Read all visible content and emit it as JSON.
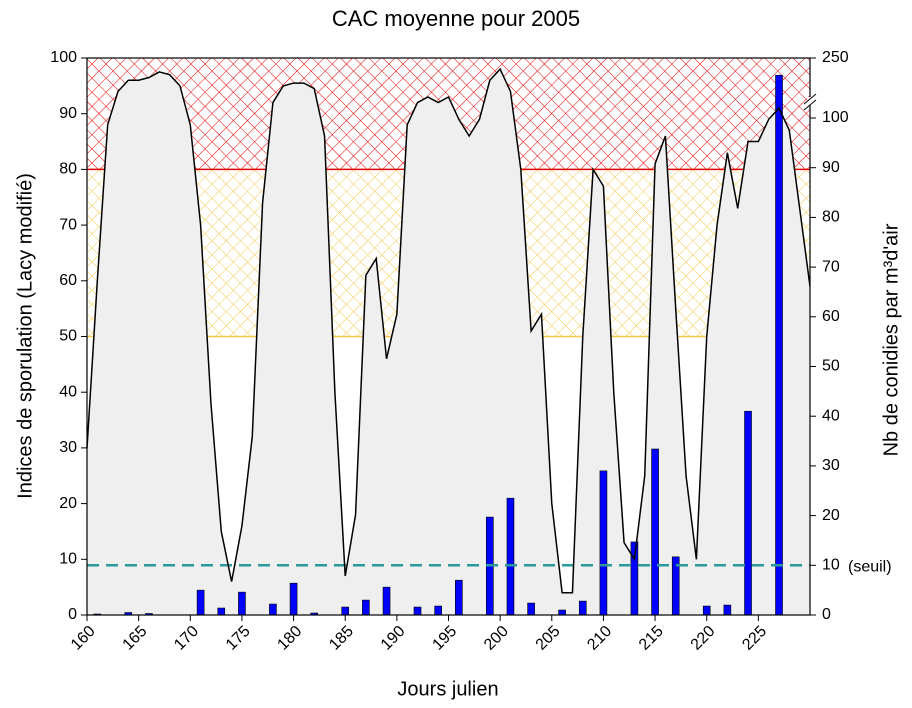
{
  "chart_data": {
    "type": "bar_area",
    "title": "CAC moyenne pour 2005",
    "xlabel": "Jours julien",
    "ylabel": "Indices de sporulation (Lacy modifié)",
    "y2label": "Nb de conidies par m³d'air",
    "xlim": [
      160,
      230
    ],
    "xticks": [
      160,
      165,
      170,
      175,
      180,
      185,
      190,
      195,
      200,
      205,
      210,
      215,
      220,
      225
    ],
    "ylim": [
      0,
      100
    ],
    "yticks": [
      0,
      10,
      20,
      30,
      40,
      50,
      60,
      70,
      80,
      90,
      100
    ],
    "y2lim": [
      0,
      250
    ],
    "y2break": 100,
    "y2ticks": [
      0,
      10,
      20,
      30,
      40,
      50,
      60,
      70,
      80,
      90,
      100,
      250
    ],
    "zones": [
      {
        "from": 50,
        "to": 80,
        "color": "#f2c84b"
      },
      {
        "from": 80,
        "to": 100,
        "color": "#e00000"
      }
    ],
    "threshold": {
      "value": 10,
      "label": "(seuil)",
      "axis": "y2",
      "color": "#2a9a9a"
    },
    "series": [
      {
        "type": "area",
        "color": "#000000",
        "fill": "#efefef",
        "x": [
          160,
          161,
          162,
          163,
          164,
          165,
          166,
          167,
          168,
          169,
          170,
          171,
          172,
          173,
          174,
          175,
          176,
          177,
          178,
          179,
          180,
          181,
          182,
          183,
          184,
          185,
          186,
          187,
          188,
          189,
          190,
          191,
          192,
          193,
          194,
          195,
          196,
          197,
          198,
          199,
          200,
          201,
          202,
          203,
          204,
          205,
          206,
          207,
          208,
          209,
          210,
          211,
          212,
          213,
          214,
          215,
          216,
          217,
          218,
          219,
          220,
          221,
          222,
          223,
          224,
          225,
          226,
          227,
          228,
          230
        ],
        "values": [
          30,
          60,
          88,
          94,
          96,
          96,
          96.5,
          97.5,
          97,
          95,
          88,
          70,
          38,
          15,
          6,
          16,
          32,
          74,
          92,
          95,
          95.5,
          95.5,
          94.5,
          86,
          40,
          7,
          18,
          61,
          64,
          46,
          54,
          88,
          92,
          93,
          92,
          93,
          89,
          86,
          89,
          96,
          98,
          94,
          80,
          51,
          54,
          20,
          4,
          4,
          50,
          80,
          77,
          40,
          13,
          10,
          25,
          81,
          86,
          55,
          25,
          10,
          50,
          70,
          83,
          73,
          85,
          85,
          89,
          91,
          87,
          59
        ]
      },
      {
        "type": "bar",
        "axis": "y2",
        "color": "#0000ff",
        "x": [
          161,
          164,
          166,
          171,
          173,
          175,
          178,
          180,
          182,
          185,
          187,
          189,
          192,
          194,
          196,
          199,
          201,
          203,
          206,
          208,
          210,
          213,
          215,
          217,
          220,
          222,
          224,
          227
        ],
        "values": [
          0.2,
          0.5,
          0.3,
          5,
          1.4,
          4.6,
          2.2,
          6.4,
          0.4,
          1.6,
          3,
          5.6,
          1.6,
          1.8,
          7,
          19.7,
          23.5,
          2.4,
          1,
          2.8,
          29,
          14.7,
          33.4,
          11.7,
          1.8,
          2,
          41,
          207
        ]
      }
    ]
  }
}
